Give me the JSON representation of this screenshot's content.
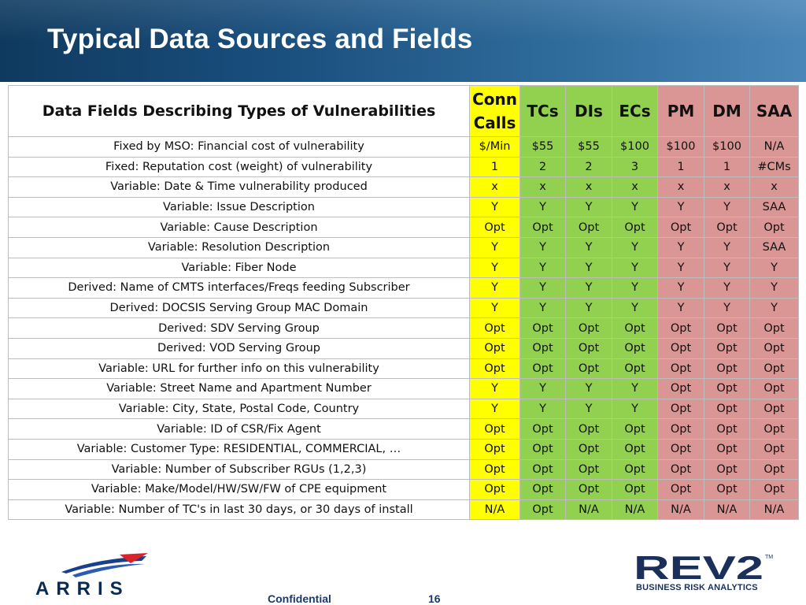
{
  "header": {
    "title": "Typical Data Sources and Fields"
  },
  "table": {
    "field_header": "Data Fields Describing Types of Vulnerabilities",
    "columns": [
      {
        "label": "Conn Calls",
        "color": "#ffff00"
      },
      {
        "label": "TCs",
        "color": "#92d050"
      },
      {
        "label": "DIs",
        "color": "#92d050"
      },
      {
        "label": "ECs",
        "color": "#92d050"
      },
      {
        "label": "PM",
        "color": "#da9694"
      },
      {
        "label": "DM",
        "color": "#da9694"
      },
      {
        "label": "SAA",
        "color": "#da9694"
      }
    ],
    "rows": [
      {
        "field": "Fixed by MSO: Financial cost of vulnerability",
        "values": [
          "$/Min",
          "$55",
          "$55",
          "$100",
          "$100",
          "$100",
          "N/A"
        ]
      },
      {
        "field": "Fixed: Reputation cost (weight) of vulnerability",
        "values": [
          "1",
          "2",
          "2",
          "3",
          "1",
          "1",
          "#CMs"
        ]
      },
      {
        "field": "Variable: Date & Time vulnerability produced",
        "values": [
          "x",
          "x",
          "x",
          "x",
          "x",
          "x",
          "x"
        ]
      },
      {
        "field": "Variable: Issue Description",
        "values": [
          "Y",
          "Y",
          "Y",
          "Y",
          "Y",
          "Y",
          "SAA"
        ]
      },
      {
        "field": "Variable: Cause Description",
        "values": [
          "Opt",
          "Opt",
          "Opt",
          "Opt",
          "Opt",
          "Opt",
          "Opt"
        ]
      },
      {
        "field": "Variable: Resolution Description",
        "values": [
          "Y",
          "Y",
          "Y",
          "Y",
          "Y",
          "Y",
          "SAA"
        ]
      },
      {
        "field": "Variable: Fiber Node",
        "values": [
          "Y",
          "Y",
          "Y",
          "Y",
          "Y",
          "Y",
          "Y"
        ]
      },
      {
        "field": "Derived: Name of CMTS interfaces/Freqs feeding  Subscriber",
        "values": [
          "Y",
          "Y",
          "Y",
          "Y",
          "Y",
          "Y",
          "Y"
        ]
      },
      {
        "field": "Derived: DOCSIS Serving Group MAC Domain",
        "values": [
          "Y",
          "Y",
          "Y",
          "Y",
          "Y",
          "Y",
          "Y"
        ]
      },
      {
        "field": "Derived: SDV Serving Group",
        "values": [
          "Opt",
          "Opt",
          "Opt",
          "Opt",
          "Opt",
          "Opt",
          "Opt"
        ]
      },
      {
        "field": "Derived: VOD Serving Group",
        "values": [
          "Opt",
          "Opt",
          "Opt",
          "Opt",
          "Opt",
          "Opt",
          "Opt"
        ]
      },
      {
        "field": "Variable: URL for further info on this vulnerability",
        "values": [
          "Opt",
          "Opt",
          "Opt",
          "Opt",
          "Opt",
          "Opt",
          "Opt"
        ]
      },
      {
        "field": "Variable: Street Name and Apartment Number",
        "values": [
          "Y",
          "Y",
          "Y",
          "Y",
          "Opt",
          "Opt",
          "Opt"
        ]
      },
      {
        "field": "Variable: City, State, Postal Code, Country",
        "values": [
          "Y",
          "Y",
          "Y",
          "Y",
          "Opt",
          "Opt",
          "Opt"
        ]
      },
      {
        "field": "Variable: ID of  CSR/Fix Agent",
        "values": [
          "Opt",
          "Opt",
          "Opt",
          "Opt",
          "Opt",
          "Opt",
          "Opt"
        ]
      },
      {
        "field": "Variable: Customer Type: RESIDENTIAL, COMMERCIAL, …",
        "values": [
          "Opt",
          "Opt",
          "Opt",
          "Opt",
          "Opt",
          "Opt",
          "Opt"
        ]
      },
      {
        "field": "Variable: Number of Subscriber RGUs (1,2,3)",
        "values": [
          "Opt",
          "Opt",
          "Opt",
          "Opt",
          "Opt",
          "Opt",
          "Opt"
        ]
      },
      {
        "field": "Variable:  Make/Model/HW/SW/FW of CPE equipment",
        "values": [
          "Opt",
          "Opt",
          "Opt",
          "Opt",
          "Opt",
          "Opt",
          "Opt"
        ]
      },
      {
        "field": "Variable: Number of TC's in last 30 days, or 30 days of install",
        "values": [
          "N/A",
          "Opt",
          "N/A",
          "N/A",
          "N/A",
          "N/A",
          "N/A"
        ]
      }
    ]
  },
  "footer": {
    "left_logo": "ARRIS",
    "confidential": "Confidential",
    "page_number": "16",
    "right_logo": "REV2",
    "right_logo_tm": "TM",
    "right_logo_subtitle": "BUSINESS RISK ANALYTICS"
  }
}
